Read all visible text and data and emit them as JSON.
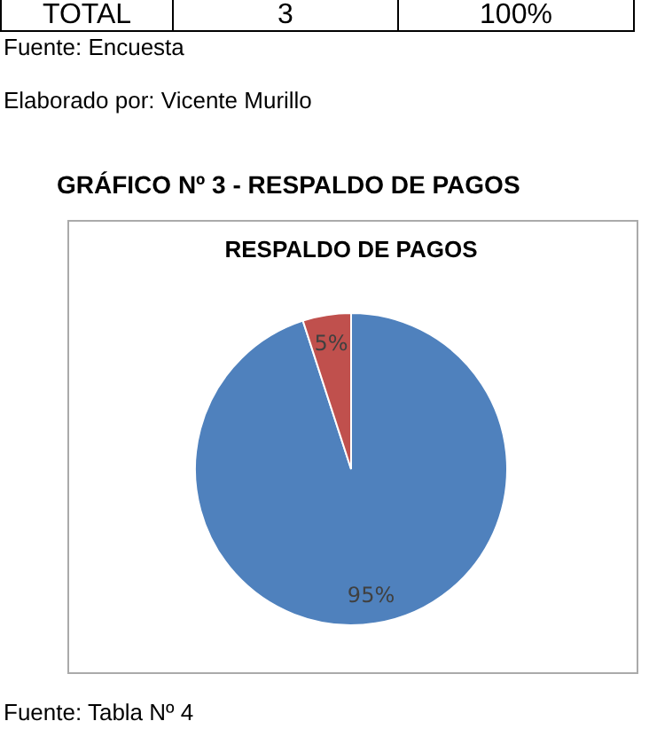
{
  "chart_data": {
    "type": "pie",
    "title": "RESPALDO DE PAGOS",
    "categories": [
      null,
      null
    ],
    "values": [
      95,
      5
    ],
    "colors": [
      "#4f81bd",
      "#c0504d"
    ],
    "value_labels": [
      "95%",
      "5%"
    ],
    "legend": false,
    "annotations": [
      "TOTAL",
      "3",
      "100%",
      "Fuente: Encuesta",
      "Elaborado por: Vicente Murillo",
      "GRÁFICO Nº 3 - RESPALDO DE PAGOS",
      "Fuente: Tabla Nº 4"
    ]
  }
}
